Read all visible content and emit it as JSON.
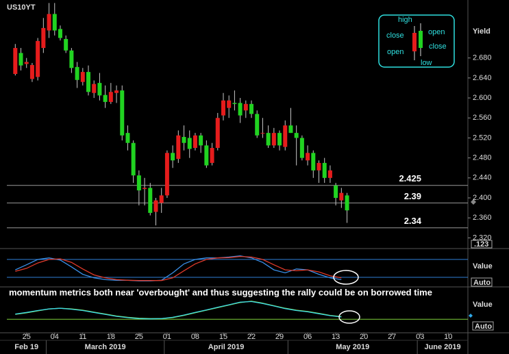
{
  "chart_data": [
    {
      "type": "candlestick",
      "title": "US10YT",
      "y_label": "Yield",
      "format_button": ".123",
      "x": [
        "2019-02-21",
        "2019-02-22",
        "2019-02-25",
        "2019-02-26",
        "2019-02-27",
        "2019-02-28",
        "2019-03-01",
        "2019-03-04",
        "2019-03-05",
        "2019-03-06",
        "2019-03-07",
        "2019-03-08",
        "2019-03-11",
        "2019-03-12",
        "2019-03-13",
        "2019-03-14",
        "2019-03-15",
        "2019-03-18",
        "2019-03-19",
        "2019-03-20",
        "2019-03-21",
        "2019-03-22",
        "2019-03-25",
        "2019-03-26",
        "2019-03-27",
        "2019-03-28",
        "2019-03-29",
        "2019-04-01",
        "2019-04-02",
        "2019-04-03",
        "2019-04-04",
        "2019-04-05",
        "2019-04-08",
        "2019-04-09",
        "2019-04-10",
        "2019-04-11",
        "2019-04-12",
        "2019-04-15",
        "2019-04-16",
        "2019-04-17",
        "2019-04-18",
        "2019-04-19",
        "2019-04-22",
        "2019-04-23",
        "2019-04-24",
        "2019-04-25",
        "2019-04-26",
        "2019-04-29",
        "2019-04-30",
        "2019-05-01",
        "2019-05-02",
        "2019-05-03",
        "2019-05-06",
        "2019-05-07",
        "2019-05-08",
        "2019-05-09",
        "2019-05-10",
        "2019-05-13",
        "2019-05-14",
        "2019-05-15"
      ],
      "open": [
        2.648,
        2.69,
        2.668,
        2.638,
        2.642,
        2.7,
        2.735,
        2.768,
        2.738,
        2.718,
        2.695,
        2.662,
        2.632,
        2.652,
        2.61,
        2.63,
        2.606,
        2.592,
        2.61,
        2.615,
        2.53,
        2.51,
        2.445,
        2.418,
        2.42,
        2.372,
        2.39,
        2.405,
        2.49,
        2.478,
        2.522,
        2.52,
        2.5,
        2.525,
        2.505,
        2.47,
        2.5,
        2.565,
        2.58,
        2.59,
        2.59,
        2.575,
        2.588,
        2.568,
        2.53,
        2.53,
        2.505,
        2.53,
        2.502,
        2.545,
        2.53,
        2.52,
        2.475,
        2.49,
        2.455,
        2.47,
        2.44,
        2.425,
        2.395,
        2.405
      ],
      "high": [
        2.708,
        2.7,
        2.68,
        2.67,
        2.72,
        2.76,
        2.79,
        2.79,
        2.745,
        2.725,
        2.7,
        2.672,
        2.66,
        2.665,
        2.635,
        2.65,
        2.625,
        2.63,
        2.625,
        2.625,
        2.545,
        2.515,
        2.455,
        2.44,
        2.43,
        2.4,
        2.42,
        2.495,
        2.505,
        2.535,
        2.545,
        2.535,
        2.53,
        2.53,
        2.515,
        2.51,
        2.57,
        2.61,
        2.605,
        2.615,
        2.6,
        2.595,
        2.595,
        2.575,
        2.56,
        2.545,
        2.54,
        2.535,
        2.555,
        2.58,
        2.545,
        2.525,
        2.505,
        2.495,
        2.475,
        2.48,
        2.465,
        2.43,
        2.42,
        2.41
      ],
      "low": [
        2.645,
        2.655,
        2.66,
        2.632,
        2.635,
        2.69,
        2.72,
        2.725,
        2.715,
        2.69,
        2.65,
        2.62,
        2.625,
        2.605,
        2.6,
        2.595,
        2.58,
        2.588,
        2.59,
        2.515,
        2.495,
        2.43,
        2.385,
        2.385,
        2.365,
        2.345,
        2.37,
        2.4,
        2.46,
        2.47,
        2.495,
        2.48,
        2.495,
        2.49,
        2.46,
        2.465,
        2.495,
        2.555,
        2.56,
        2.575,
        2.55,
        2.56,
        2.56,
        2.52,
        2.52,
        2.5,
        2.5,
        2.495,
        2.495,
        2.53,
        2.465,
        2.475,
        2.465,
        2.44,
        2.43,
        2.43,
        2.43,
        2.385,
        2.38,
        2.35
      ],
      "close": [
        2.7,
        2.665,
        2.672,
        2.666,
        2.714,
        2.74,
        2.768,
        2.735,
        2.72,
        2.695,
        2.66,
        2.636,
        2.652,
        2.612,
        2.628,
        2.605,
        2.592,
        2.612,
        2.615,
        2.525,
        2.51,
        2.445,
        2.415,
        2.42,
        2.37,
        2.395,
        2.405,
        2.49,
        2.475,
        2.525,
        2.51,
        2.498,
        2.525,
        2.505,
        2.465,
        2.5,
        2.56,
        2.595,
        2.595,
        2.588,
        2.565,
        2.588,
        2.568,
        2.525,
        2.53,
        2.505,
        2.53,
        2.505,
        2.545,
        2.53,
        2.52,
        2.48,
        2.49,
        2.455,
        2.47,
        2.44,
        2.455,
        2.4,
        2.41,
        2.375
      ],
      "up_color": "#e51c1c",
      "down_color": "#21d321",
      "wick_color": "#c8c8c8",
      "ylim": [
        2.3,
        2.796
      ],
      "yticks": [
        {
          "value": 2.32,
          "label": "2.320"
        },
        {
          "value": 2.36,
          "label": "2.360"
        },
        {
          "value": 2.4,
          "label": "2.400"
        },
        {
          "value": 2.44,
          "label": "2.440"
        },
        {
          "value": 2.48,
          "label": "2.480"
        },
        {
          "value": 2.52,
          "label": "2.520"
        },
        {
          "value": 2.56,
          "label": "2.560"
        },
        {
          "value": 2.6,
          "label": "2.600"
        },
        {
          "value": 2.64,
          "label": "2.640"
        },
        {
          "value": 2.68,
          "label": "2.680"
        }
      ],
      "xlim": [
        "2019-02-20",
        "2019-06-13"
      ],
      "xticks": [
        {
          "value": "2019-02-25",
          "label": "25"
        },
        {
          "value": "2019-03-04",
          "label": "04"
        },
        {
          "value": "2019-03-11",
          "label": "11"
        },
        {
          "value": "2019-03-18",
          "label": "18"
        },
        {
          "value": "2019-03-25",
          "label": "25"
        },
        {
          "value": "2019-04-01",
          "label": "01"
        },
        {
          "value": "2019-04-08",
          "label": "08"
        },
        {
          "value": "2019-04-15",
          "label": "15"
        },
        {
          "value": "2019-04-22",
          "label": "22"
        },
        {
          "value": "2019-04-29",
          "label": "29"
        },
        {
          "value": "2019-05-06",
          "label": "06"
        },
        {
          "value": "2019-05-13",
          "label": "13"
        },
        {
          "value": "2019-05-20",
          "label": "20"
        },
        {
          "value": "2019-05-27",
          "label": "27"
        },
        {
          "value": "2019-06-03",
          "label": "03"
        },
        {
          "value": "2019-06-10",
          "label": "10"
        }
      ],
      "month_labels": [
        "Feb 19",
        "March 2019",
        "April 2019",
        "May 2019",
        "June 2019"
      ],
      "hlines": [
        2.425,
        2.39,
        2.34
      ],
      "hline_color": "#9a9a9a",
      "legend": {
        "labels": [
          "high",
          "close",
          "open",
          "open",
          "close",
          "low"
        ]
      }
    },
    {
      "type": "line",
      "y_label": "Value",
      "scale": "Auto",
      "x": [
        "2019-02-21",
        "2019-02-25",
        "2019-02-27",
        "2019-03-01",
        "2019-03-05",
        "2019-03-07",
        "2019-03-11",
        "2019-03-13",
        "2019-03-15",
        "2019-03-19",
        "2019-03-21",
        "2019-03-25",
        "2019-03-27",
        "2019-03-29",
        "2019-04-02",
        "2019-04-04",
        "2019-04-08",
        "2019-04-10",
        "2019-04-12",
        "2019-04-16",
        "2019-04-18",
        "2019-04-22",
        "2019-04-24",
        "2019-04-26",
        "2019-04-30",
        "2019-05-02",
        "2019-05-06",
        "2019-05-08",
        "2019-05-10",
        "2019-05-14"
      ],
      "series": [
        {
          "color": "#3a8fe8",
          "values": [
            45,
            62,
            80,
            85,
            78,
            55,
            30,
            18,
            12,
            10,
            10,
            8,
            8,
            10,
            35,
            65,
            80,
            85,
            85,
            88,
            92,
            85,
            70,
            45,
            35,
            48,
            45,
            30,
            18,
            12
          ]
        },
        {
          "color": "#e03a2a",
          "values": [
            40,
            50,
            68,
            80,
            82,
            70,
            48,
            28,
            18,
            12,
            10,
            9,
            9,
            9,
            18,
            42,
            65,
            80,
            85,
            86,
            90,
            88,
            80,
            62,
            45,
            42,
            45,
            38,
            25,
            18
          ]
        }
      ],
      "ylim": [
        -10,
        112
      ],
      "hlines": [
        80,
        20
      ],
      "hline_color": "#2f7fd8"
    },
    {
      "type": "line",
      "annotation": "momentum metrics both near 'overbought'  and thus suggesting the rally could be on borrowed time",
      "y_label": "Value",
      "scale": "Auto",
      "x": [
        "2019-02-21",
        "2019-02-25",
        "2019-02-27",
        "2019-03-01",
        "2019-03-05",
        "2019-03-07",
        "2019-03-11",
        "2019-03-13",
        "2019-03-15",
        "2019-03-19",
        "2019-03-21",
        "2019-03-25",
        "2019-03-27",
        "2019-03-29",
        "2019-04-02",
        "2019-04-04",
        "2019-04-08",
        "2019-04-10",
        "2019-04-12",
        "2019-04-16",
        "2019-04-18",
        "2019-04-22",
        "2019-04-24",
        "2019-04-26",
        "2019-04-30",
        "2019-05-02",
        "2019-05-06",
        "2019-05-08",
        "2019-05-10",
        "2019-05-14"
      ],
      "series": [
        {
          "color": "#8ee04a",
          "values": [
            55,
            60,
            66,
            72,
            74,
            72,
            68,
            62,
            56,
            50,
            46,
            43,
            42,
            42,
            45,
            52,
            60,
            68,
            76,
            84,
            92,
            96,
            90,
            82,
            74,
            68,
            64,
            58,
            52,
            48
          ]
        },
        {
          "color": "#3ad8e8",
          "values": [
            56,
            61,
            67,
            72,
            74,
            71,
            67,
            61,
            55,
            49,
            45,
            42,
            41,
            42,
            46,
            53,
            61,
            69,
            77,
            85,
            93,
            95,
            89,
            81,
            73,
            67,
            63,
            57,
            51,
            47
          ]
        }
      ],
      "ylim": [
        0,
        100
      ],
      "hlines": [
        40
      ],
      "hline_color": "#7fd23a"
    }
  ]
}
